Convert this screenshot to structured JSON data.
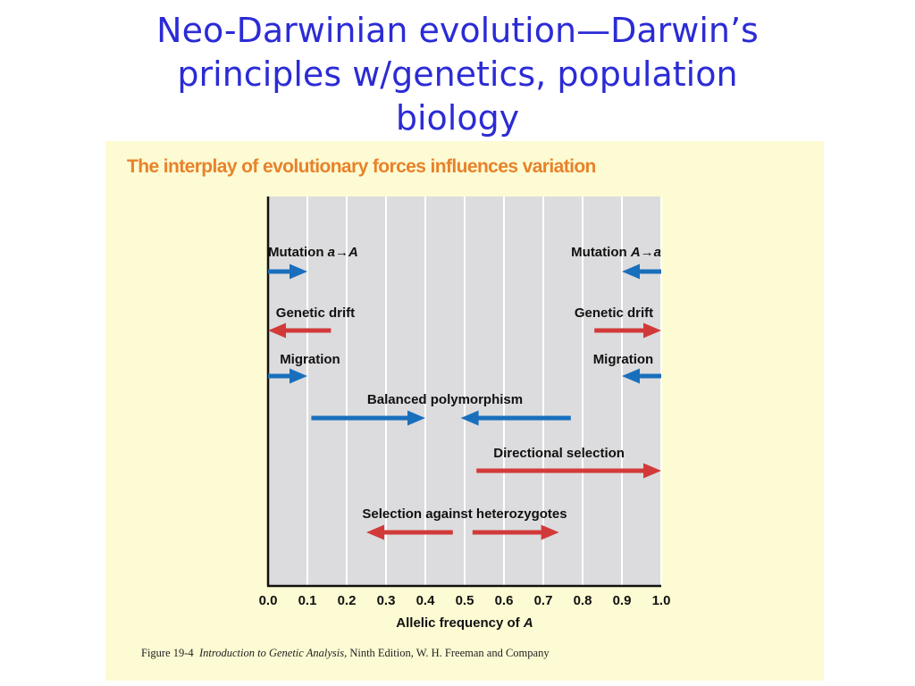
{
  "slide": {
    "title_line1": "Neo-Darwinian evolution—Darwin’s",
    "title_line2": "principles w/genetics, population",
    "title_line3": "biology"
  },
  "figure": {
    "title": "The interplay of evolutionary forces influences variation",
    "caption_prefix": "Figure 19-4",
    "caption_book": "Introduction to Genetic Analysis,",
    "caption_suffix": "Ninth Edition, W. H. Freeman and Company"
  },
  "colors": {
    "title": "#2b2bd6",
    "figure_title": "#e8822a",
    "blue_arrow": "#1a6fbd",
    "red_arrow": "#d23a3a",
    "plot_bg": "#dcdcde",
    "panel_bg": "#fdfbd3"
  },
  "chart_data": {
    "type": "diagram",
    "xlabel_text": "Allelic frequency of ",
    "xlabel_var": "A",
    "xlim": [
      0,
      1
    ],
    "xticks": [
      "0.0",
      "0.1",
      "0.2",
      "0.3",
      "0.4",
      "0.5",
      "0.6",
      "0.7",
      "0.8",
      "0.9",
      "1.0"
    ],
    "grid": true,
    "forces": [
      {
        "label_parts": [
          "Mutation ",
          "a",
          "→",
          "A"
        ],
        "label_x": 0.0,
        "label_anchor": "start",
        "color": "blue",
        "arrows": [
          {
            "from": 0.0,
            "to": 0.1
          }
        ]
      },
      {
        "label_parts": [
          "Mutation ",
          "A",
          "→",
          "a"
        ],
        "label_x": 1.0,
        "label_anchor": "end",
        "color": "blue",
        "arrows": [
          {
            "from": 1.0,
            "to": 0.9
          }
        ]
      },
      {
        "label": "Genetic drift",
        "label_x": 0.02,
        "label_anchor": "start",
        "color": "red",
        "arrows": [
          {
            "from": 0.16,
            "to": 0.0
          }
        ]
      },
      {
        "label": "Genetic drift",
        "label_x": 0.98,
        "label_anchor": "end",
        "color": "red",
        "arrows": [
          {
            "from": 0.83,
            "to": 1.0
          }
        ]
      },
      {
        "label": "Migration",
        "label_x": 0.03,
        "label_anchor": "start",
        "color": "blue",
        "arrows": [
          {
            "from": 0.0,
            "to": 0.1
          }
        ]
      },
      {
        "label": "Migration",
        "label_x": 0.98,
        "label_anchor": "end",
        "color": "blue",
        "arrows": [
          {
            "from": 1.0,
            "to": 0.9
          }
        ]
      },
      {
        "label": "Balanced polymorphism",
        "label_x": 0.45,
        "label_anchor": "middle",
        "color": "blue",
        "arrows": [
          {
            "from": 0.11,
            "to": 0.4
          },
          {
            "from": 0.77,
            "to": 0.49
          }
        ]
      },
      {
        "label": "Directional selection",
        "label_x": 0.74,
        "label_anchor": "middle",
        "color": "red",
        "arrows": [
          {
            "from": 0.53,
            "to": 1.0
          }
        ]
      },
      {
        "label": "Selection against heterozygotes",
        "label_x": 0.5,
        "label_anchor": "middle",
        "color": "red",
        "arrows": [
          {
            "from": 0.47,
            "to": 0.25
          },
          {
            "from": 0.52,
            "to": 0.74
          }
        ]
      }
    ]
  }
}
